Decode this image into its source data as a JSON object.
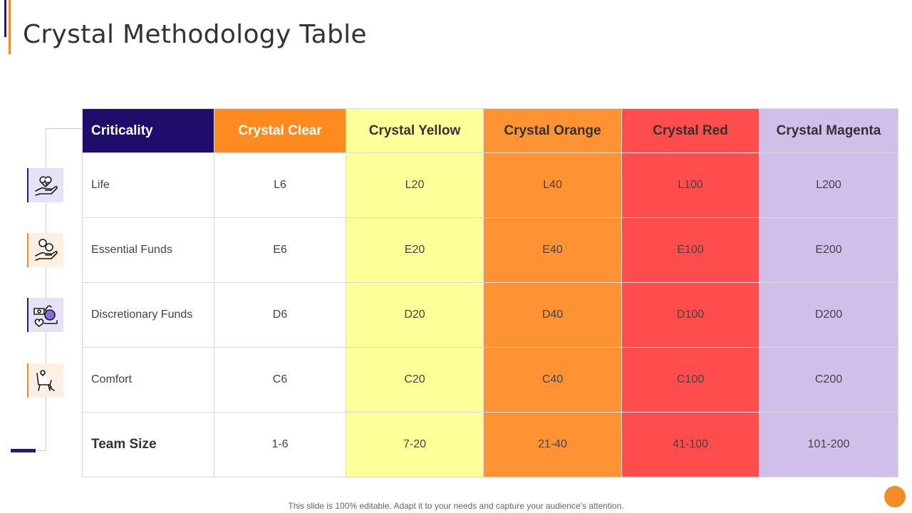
{
  "title": "Crystal Methodology Table",
  "colors": {
    "header_criticality": "#1f0c6b",
    "crystal_clear": "#ff8a1f",
    "crystal_yellow": "#ffff99",
    "crystal_orange": "#ff9333",
    "crystal_red": "#ff4d4d",
    "crystal_magenta": "#d0bfe8",
    "accent_purple": "#2a1a6e",
    "accent_orange": "#f28c28"
  },
  "icons": [
    "heart-hand-icon",
    "coins-hand-icon",
    "money-purchase-icon",
    "comfort-chair-icon"
  ],
  "table": {
    "headers": [
      "Criticality",
      "Crystal Clear",
      "Crystal Yellow",
      "Crystal Orange",
      "Crystal Red",
      "Crystal Magenta"
    ],
    "rows": [
      [
        "Life",
        "L6",
        "L20",
        "L40",
        "L100",
        "L200"
      ],
      [
        "Essential Funds",
        "E6",
        "E20",
        "E40",
        "E100",
        "E200"
      ],
      [
        "Discretionary Funds",
        "D6",
        "D20",
        "D40",
        "D100",
        "D200"
      ],
      [
        "Comfort",
        "C6",
        "C20",
        "C40",
        "C100",
        "C200"
      ],
      [
        "Team Size",
        "1-6",
        "7-20",
        "21-40",
        "41-100",
        "101-200"
      ]
    ]
  },
  "footer": "This slide is 100% editable. Adapt it to your needs and capture your audience's attention."
}
